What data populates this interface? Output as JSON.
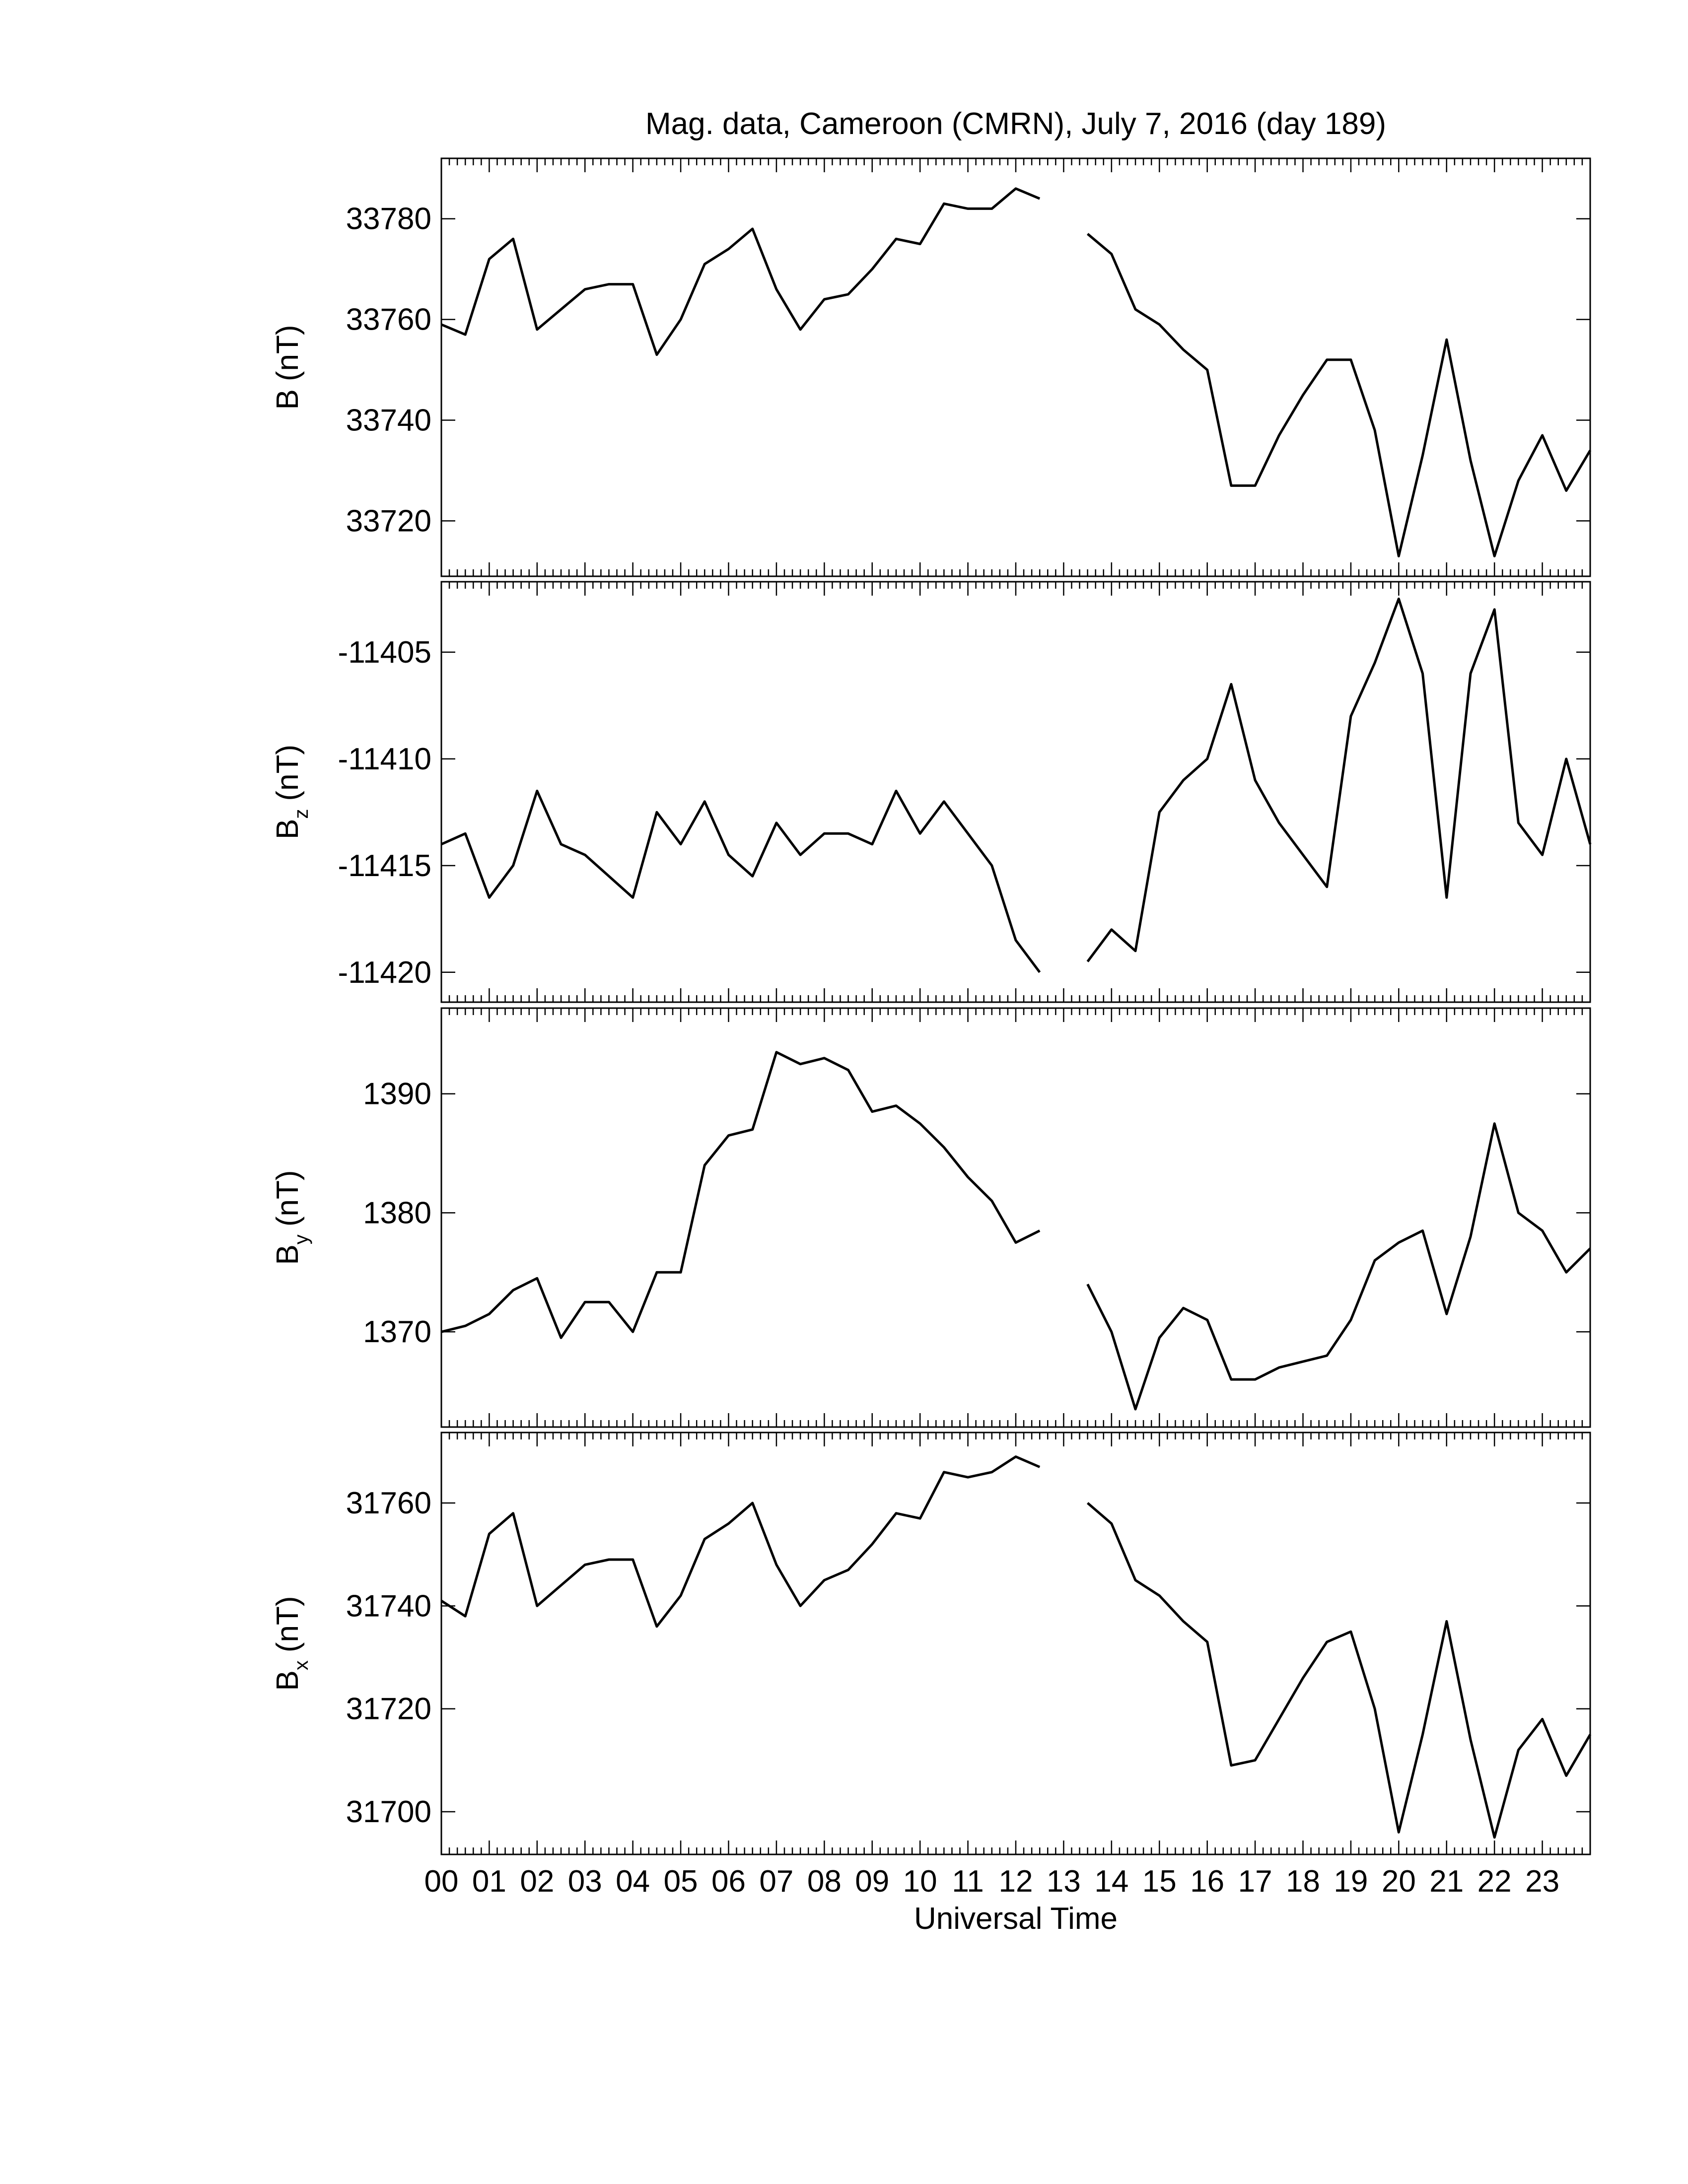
{
  "chart_data": [
    {
      "type": "line",
      "title": "Mag. data, Cameroon (CMRN), July 7, 2016 (day 189)",
      "ylabel": "B",
      "ylabel_unit": "(nT)",
      "x": [
        0,
        0.5,
        1,
        1.5,
        2,
        2.5,
        3,
        3.5,
        4,
        4.5,
        5,
        5.5,
        6,
        6.5,
        7,
        7.5,
        8,
        8.5,
        9,
        9.5,
        10,
        10.5,
        11,
        11.5,
        12,
        12.5,
        13,
        13.5,
        14,
        14.5,
        15,
        15.5,
        16,
        16.5,
        17,
        17.5,
        18,
        18.5,
        19,
        19.5,
        20,
        20.5,
        21,
        21.5,
        22,
        22.5,
        23,
        23.5,
        24
      ],
      "values": [
        33759,
        33757,
        33772,
        33776,
        33758,
        33762,
        33766,
        33767,
        33767,
        33753,
        33760,
        33771,
        33774,
        33778,
        33766,
        33758,
        33764,
        33765,
        33770,
        33776,
        33775,
        33783,
        33782,
        33782,
        33786,
        33784,
        null,
        33777,
        33773,
        33762,
        33759,
        33754,
        33750,
        33727,
        33727,
        33737,
        33745,
        33752,
        33752,
        33738,
        33713,
        33733,
        33756,
        33732,
        33713,
        33728,
        33737,
        33726,
        33734
      ],
      "color": "#000000",
      "xlim": [
        0,
        24
      ],
      "ylim": [
        33709,
        33792
      ],
      "yticks": [
        33720,
        33740,
        33760,
        33780
      ]
    },
    {
      "type": "line",
      "ylabel": "B",
      "ylabel_subscript": "z",
      "ylabel_unit": "(nT)",
      "x": [
        0,
        0.5,
        1,
        1.5,
        2,
        2.5,
        3,
        3.5,
        4,
        4.5,
        5,
        5.5,
        6,
        6.5,
        7,
        7.5,
        8,
        8.5,
        9,
        9.5,
        10,
        10.5,
        11,
        11.5,
        12,
        12.5,
        13,
        13.5,
        14,
        14.5,
        15,
        15.5,
        16,
        16.5,
        17,
        17.5,
        18,
        18.5,
        19,
        19.5,
        20,
        20.5,
        21,
        21.5,
        22,
        22.5,
        23,
        23.5,
        24
      ],
      "values": [
        -11414,
        -11413.5,
        -11416.5,
        -11415,
        -11411.5,
        -11414,
        -11414.5,
        -11415.5,
        -11416.5,
        -11412.5,
        -11414,
        -11412,
        -11414.5,
        -11415.5,
        -11413,
        -11414.5,
        -11413.5,
        -11413.5,
        -11414,
        -11411.5,
        -11413.5,
        -11412,
        -11413.5,
        -11415,
        -11418.5,
        -11420,
        null,
        -11419.5,
        -11418,
        -11419,
        -11412.5,
        -11411,
        -11410,
        -11406.5,
        -11411,
        -11413,
        -11414.5,
        -11416,
        -11408,
        -11405.5,
        -11402.5,
        -11406,
        -11416.5,
        -11406,
        -11403,
        -11413,
        -11414.5,
        -11410,
        -11414
      ],
      "color": "#000000",
      "xlim": [
        0,
        24
      ],
      "ylim": [
        -11421.4,
        -11401.7
      ],
      "yticks": [
        -11420,
        -11415,
        -11410,
        -11405
      ]
    },
    {
      "type": "line",
      "ylabel": "B",
      "ylabel_subscript": "y",
      "ylabel_unit": "(nT)",
      "x": [
        0,
        0.5,
        1,
        1.5,
        2,
        2.5,
        3,
        3.5,
        4,
        4.5,
        5,
        5.5,
        6,
        6.5,
        7,
        7.5,
        8,
        8.5,
        9,
        9.5,
        10,
        10.5,
        11,
        11.5,
        12,
        12.5,
        13,
        13.5,
        14,
        14.5,
        15,
        15.5,
        16,
        16.5,
        17,
        17.5,
        18,
        18.5,
        19,
        19.5,
        20,
        20.5,
        21,
        21.5,
        22,
        22.5,
        23,
        23.5,
        24
      ],
      "values": [
        1370,
        1370.5,
        1371.5,
        1373.5,
        1374.5,
        1369.5,
        1372.5,
        1372.5,
        1370,
        1375,
        1375,
        1384,
        1386.5,
        1387,
        1393.5,
        1392.5,
        1393,
        1392,
        1388.5,
        1389,
        1387.5,
        1385.5,
        1383,
        1381,
        1377.5,
        1378.5,
        null,
        1374,
        1370,
        1363.5,
        1369.5,
        1372,
        1371,
        1366,
        1366,
        1367,
        1367.5,
        1368,
        1371,
        1376,
        1377.5,
        1378.5,
        1371.5,
        1378,
        1387.5,
        1380,
        1378.5,
        1375,
        1377
      ],
      "color": "#000000",
      "xlim": [
        0,
        24
      ],
      "ylim": [
        1362,
        1397.2
      ],
      "yticks": [
        1370,
        1380,
        1390
      ]
    },
    {
      "type": "line",
      "ylabel": "B",
      "ylabel_subscript": "x",
      "ylabel_unit": "(nT)",
      "xlabel": "Universal Time",
      "x": [
        0,
        0.5,
        1,
        1.5,
        2,
        2.5,
        3,
        3.5,
        4,
        4.5,
        5,
        5.5,
        6,
        6.5,
        7,
        7.5,
        8,
        8.5,
        9,
        9.5,
        10,
        10.5,
        11,
        11.5,
        12,
        12.5,
        13,
        13.5,
        14,
        14.5,
        15,
        15.5,
        16,
        16.5,
        17,
        17.5,
        18,
        18.5,
        19,
        19.5,
        20,
        20.5,
        21,
        21.5,
        22,
        22.5,
        23,
        23.5,
        24
      ],
      "values": [
        31741,
        31738,
        31754,
        31758,
        31740,
        31744,
        31748,
        31749,
        31749,
        31736,
        31742,
        31753,
        31756,
        31760,
        31748,
        31740,
        31745,
        31747,
        31752,
        31758,
        31757,
        31766,
        31765,
        31766,
        31769,
        31767,
        null,
        31760,
        31756,
        31745,
        31742,
        31737,
        31733,
        31709,
        31710,
        31718,
        31726,
        31733,
        31735,
        31720,
        31696,
        31715,
        31737,
        31714,
        31695,
        31712,
        31718,
        31707,
        31715
      ],
      "color": "#000000",
      "xlim": [
        0,
        24
      ],
      "ylim": [
        31691.7,
        31773.7
      ],
      "yticks": [
        31700,
        31720,
        31740,
        31760
      ],
      "xticks": [
        {
          "value": 0,
          "label": "00"
        },
        {
          "value": 1,
          "label": "01"
        },
        {
          "value": 2,
          "label": "02"
        },
        {
          "value": 3,
          "label": "03"
        },
        {
          "value": 4,
          "label": "04"
        },
        {
          "value": 5,
          "label": "05"
        },
        {
          "value": 6,
          "label": "06"
        },
        {
          "value": 7,
          "label": "07"
        },
        {
          "value": 8,
          "label": "08"
        },
        {
          "value": 9,
          "label": "09"
        },
        {
          "value": 10,
          "label": "10"
        },
        {
          "value": 11,
          "label": "11"
        },
        {
          "value": 12,
          "label": "12"
        },
        {
          "value": 13,
          "label": "13"
        },
        {
          "value": 14,
          "label": "14"
        },
        {
          "value": 15,
          "label": "15"
        },
        {
          "value": 16,
          "label": "16"
        },
        {
          "value": 17,
          "label": "17"
        },
        {
          "value": 18,
          "label": "18"
        },
        {
          "value": 19,
          "label": "19"
        },
        {
          "value": 20,
          "label": "20"
        },
        {
          "value": 21,
          "label": "21"
        },
        {
          "value": 22,
          "label": "22"
        },
        {
          "value": 23,
          "label": "23"
        }
      ]
    }
  ]
}
